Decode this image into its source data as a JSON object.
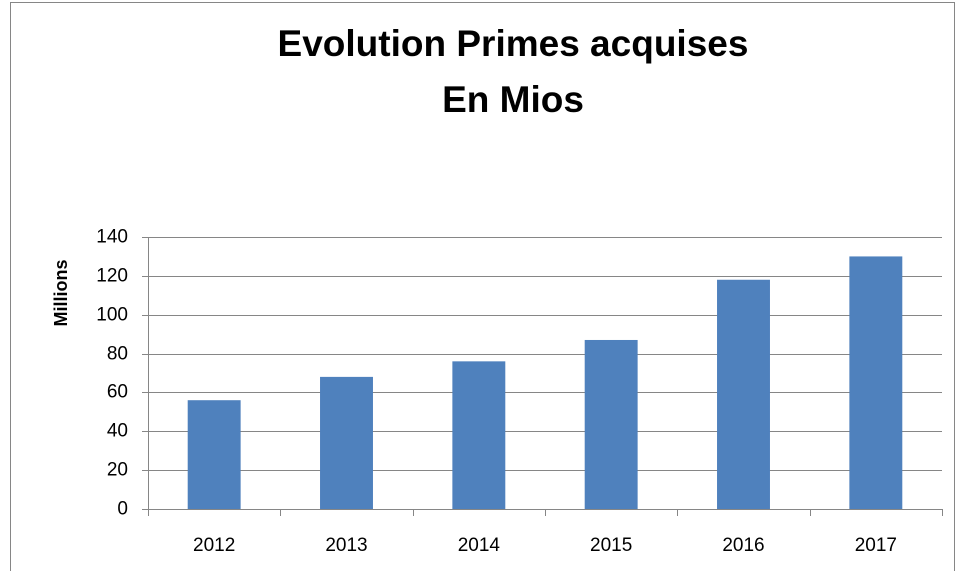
{
  "chart_data": {
    "type": "bar",
    "title": [
      "Evolution Primes acquises",
      "En Mios"
    ],
    "y_label": "Millions",
    "categories": [
      "2012",
      "2013",
      "2014",
      "2015",
      "2016",
      "2017"
    ],
    "values": [
      56,
      68,
      76,
      87,
      118,
      130
    ],
    "color": "#4f81bd",
    "ylim": [
      0,
      140
    ],
    "yticks": [
      0,
      20,
      40,
      60,
      80,
      100,
      120,
      140
    ],
    "grid": true
  }
}
